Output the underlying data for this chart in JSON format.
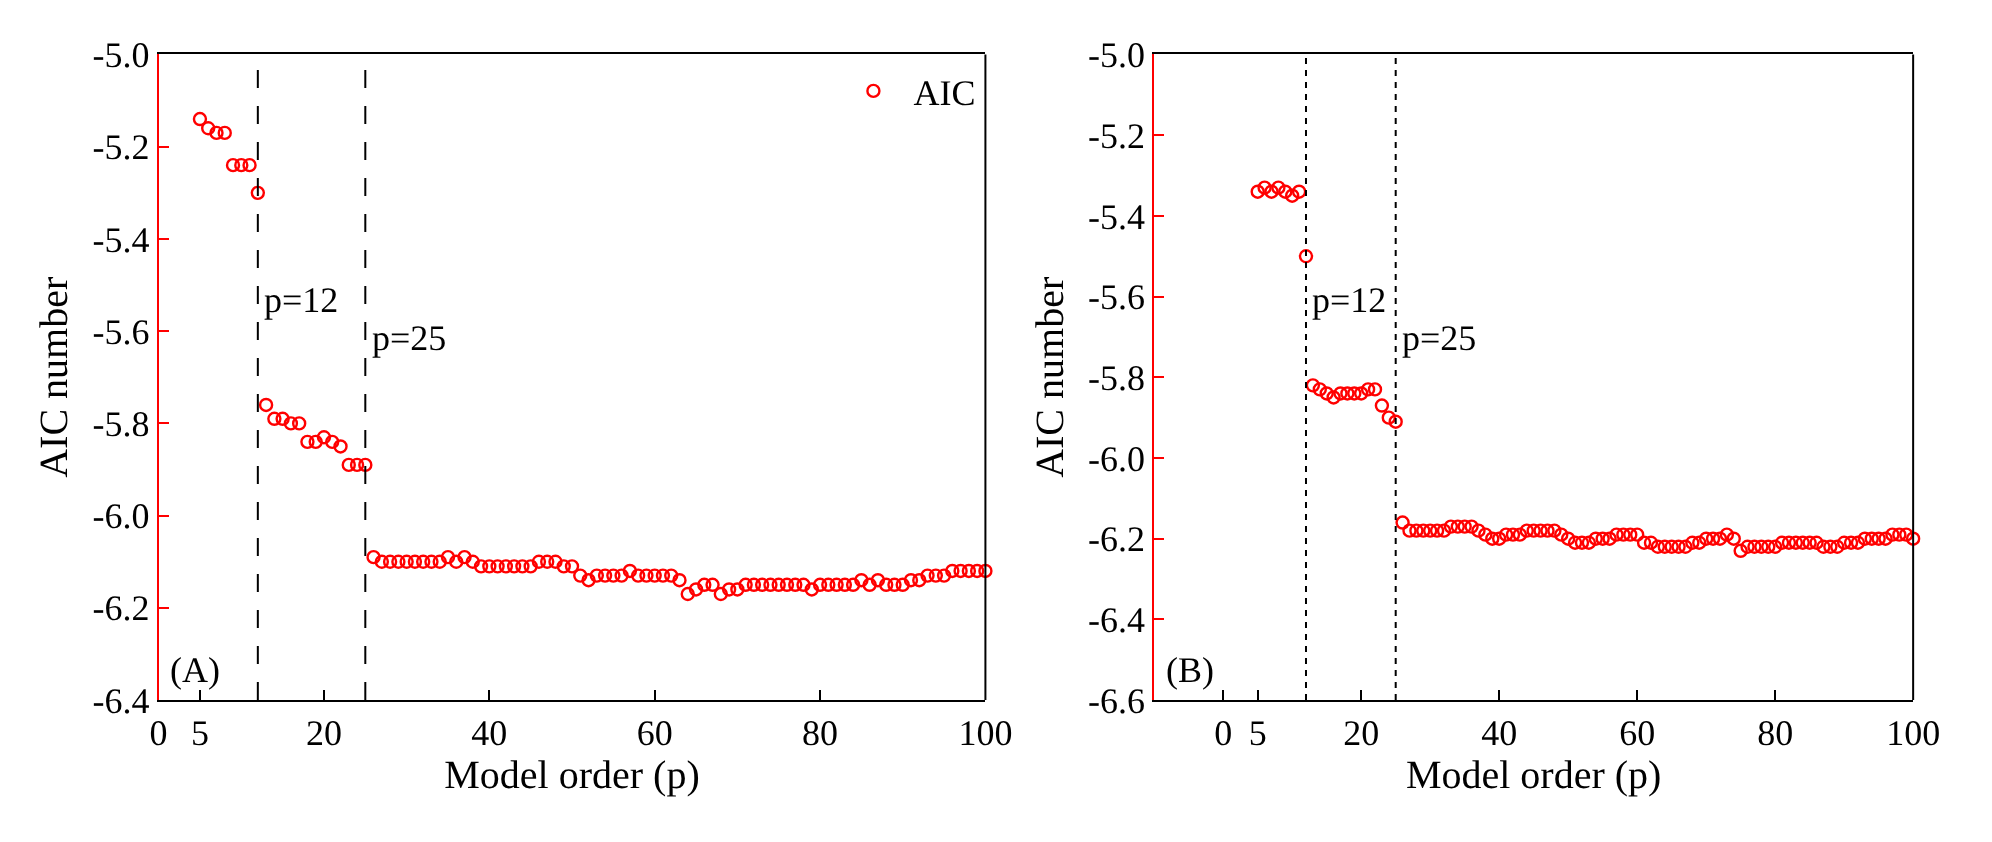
{
  "chart_data": [
    {
      "type": "scatter",
      "xlabel": "Model order (p)",
      "ylabel": "AIC number",
      "annotations": [
        "(A)"
      ],
      "legend": "top right",
      "marker": "circle",
      "xlim": [
        0,
        100
      ],
      "xticks": [
        0,
        5,
        20,
        40,
        60,
        80,
        100
      ],
      "ylim": [
        -6.4,
        -5.0
      ],
      "yticks": [
        {
          "value": -6.4,
          "label": "-6.4"
        },
        {
          "value": -6.2,
          "label": "-6.2"
        },
        {
          "value": -6.0,
          "label": "-6.0"
        },
        {
          "value": -5.8,
          "label": "-5.8"
        },
        {
          "value": -5.6,
          "label": "-5.6"
        },
        {
          "value": -5.4,
          "label": "-5.4"
        },
        {
          "value": -5.2,
          "label": "-5.2"
        },
        {
          "value": -5.0,
          "label": "-5.0"
        }
      ],
      "ref_lines": [
        {
          "axis": "x",
          "value": 12,
          "label": "p=12",
          "line_style": "dashed",
          "color": "#000000"
        },
        {
          "axis": "x",
          "value": 25,
          "label": "p=25",
          "line_style": "dashed",
          "color": "#000000"
        }
      ],
      "x": [
        5,
        6,
        7,
        8,
        9,
        10,
        11,
        12,
        13,
        14,
        15,
        16,
        17,
        18,
        19,
        20,
        21,
        22,
        23,
        24,
        25,
        26,
        27,
        28,
        29,
        30,
        31,
        32,
        33,
        34,
        35,
        36,
        37,
        38,
        39,
        40,
        41,
        42,
        43,
        44,
        45,
        46,
        47,
        48,
        49,
        50,
        51,
        52,
        53,
        54,
        55,
        56,
        57,
        58,
        59,
        60,
        61,
        62,
        63,
        64,
        65,
        66,
        67,
        68,
        69,
        70,
        71,
        72,
        73,
        74,
        75,
        76,
        77,
        78,
        79,
        80,
        81,
        82,
        83,
        84,
        85,
        86,
        87,
        88,
        89,
        90,
        91,
        92,
        93,
        94,
        95,
        96,
        97,
        98,
        99,
        100
      ],
      "series": [
        {
          "name": "AIC",
          "color": "#ff0000",
          "values": [
            -5.14,
            -5.16,
            -5.17,
            -5.17,
            -5.24,
            -5.24,
            -5.24,
            -5.3,
            -5.76,
            -5.79,
            -5.79,
            -5.8,
            -5.8,
            -5.84,
            -5.84,
            -5.83,
            -5.84,
            -5.85,
            -5.89,
            -5.89,
            -5.89,
            -6.09,
            -6.1,
            -6.1,
            -6.1,
            -6.1,
            -6.1,
            -6.1,
            -6.1,
            -6.1,
            -6.09,
            -6.1,
            -6.09,
            -6.1,
            -6.11,
            -6.11,
            -6.11,
            -6.11,
            -6.11,
            -6.11,
            -6.11,
            -6.1,
            -6.1,
            -6.1,
            -6.11,
            -6.11,
            -6.13,
            -6.14,
            -6.13,
            -6.13,
            -6.13,
            -6.13,
            -6.12,
            -6.13,
            -6.13,
            -6.13,
            -6.13,
            -6.13,
            -6.14,
            -6.17,
            -6.16,
            -6.15,
            -6.15,
            -6.17,
            -6.16,
            -6.16,
            -6.15,
            -6.15,
            -6.15,
            -6.15,
            -6.15,
            -6.15,
            -6.15,
            -6.15,
            -6.16,
            -6.15,
            -6.15,
            -6.15,
            -6.15,
            -6.15,
            -6.14,
            -6.15,
            -6.14,
            -6.15,
            -6.15,
            -6.15,
            -6.14,
            -6.14,
            -6.13,
            -6.13,
            -6.13,
            -6.12,
            -6.12,
            -6.12,
            -6.12,
            -6.12
          ]
        }
      ]
    },
    {
      "type": "scatter",
      "xlabel": "Model order (p)",
      "ylabel": "AIC number",
      "annotations": [
        "(B)"
      ],
      "marker": "circle",
      "xlim": [
        -10,
        100
      ],
      "xticks": [
        0,
        5,
        20,
        40,
        60,
        80,
        100
      ],
      "ylim": [
        -6.6,
        -5.0
      ],
      "yticks": [
        {
          "value": -6.6,
          "label": "-6.6"
        },
        {
          "value": -6.4,
          "label": "-6.4"
        },
        {
          "value": -6.2,
          "label": "-6.2"
        },
        {
          "value": -6.0,
          "label": "-6.0"
        },
        {
          "value": -5.8,
          "label": "-5.8"
        },
        {
          "value": -5.6,
          "label": "-5.6"
        },
        {
          "value": -5.4,
          "label": "-5.4"
        },
        {
          "value": -5.2,
          "label": "-5.2"
        },
        {
          "value": -5.0,
          "label": "-5.0"
        }
      ],
      "ref_lines": [
        {
          "axis": "x",
          "value": 12,
          "label": "p=12",
          "line_style": "dotted",
          "color": "#000000"
        },
        {
          "axis": "x",
          "value": 25,
          "label": "p=25",
          "line_style": "dotted",
          "color": "#000000"
        }
      ],
      "x": [
        5,
        6,
        7,
        8,
        9,
        10,
        11,
        12,
        13,
        14,
        15,
        16,
        17,
        18,
        19,
        20,
        21,
        22,
        23,
        24,
        25,
        26,
        27,
        28,
        29,
        30,
        31,
        32,
        33,
        34,
        35,
        36,
        37,
        38,
        39,
        40,
        41,
        42,
        43,
        44,
        45,
        46,
        47,
        48,
        49,
        50,
        51,
        52,
        53,
        54,
        55,
        56,
        57,
        58,
        59,
        60,
        61,
        62,
        63,
        64,
        65,
        66,
        67,
        68,
        69,
        70,
        71,
        72,
        73,
        74,
        75,
        76,
        77,
        78,
        79,
        80,
        81,
        82,
        83,
        84,
        85,
        86,
        87,
        88,
        89,
        90,
        91,
        92,
        93,
        94,
        95,
        96,
        97,
        98,
        99,
        100
      ],
      "series": [
        {
          "color": "#ff0000",
          "values": [
            -5.34,
            -5.33,
            -5.34,
            -5.33,
            -5.34,
            -5.35,
            -5.34,
            -5.5,
            -5.82,
            -5.83,
            -5.84,
            -5.85,
            -5.84,
            -5.84,
            -5.84,
            -5.84,
            -5.83,
            -5.83,
            -5.87,
            -5.9,
            -5.91,
            -6.16,
            -6.18,
            -6.18,
            -6.18,
            -6.18,
            -6.18,
            -6.18,
            -6.17,
            -6.17,
            -6.17,
            -6.17,
            -6.18,
            -6.19,
            -6.2,
            -6.2,
            -6.19,
            -6.19,
            -6.19,
            -6.18,
            -6.18,
            -6.18,
            -6.18,
            -6.18,
            -6.19,
            -6.2,
            -6.21,
            -6.21,
            -6.21,
            -6.2,
            -6.2,
            -6.2,
            -6.19,
            -6.19,
            -6.19,
            -6.19,
            -6.21,
            -6.21,
            -6.22,
            -6.22,
            -6.22,
            -6.22,
            -6.22,
            -6.21,
            -6.21,
            -6.2,
            -6.2,
            -6.2,
            -6.19,
            -6.2,
            -6.23,
            -6.22,
            -6.22,
            -6.22,
            -6.22,
            -6.22,
            -6.21,
            -6.21,
            -6.21,
            -6.21,
            -6.21,
            -6.21,
            -6.22,
            -6.22,
            -6.22,
            -6.21,
            -6.21,
            -6.21,
            -6.2,
            -6.2,
            -6.2,
            -6.2,
            -6.19,
            -6.19,
            -6.19,
            -6.2
          ]
        }
      ]
    }
  ]
}
